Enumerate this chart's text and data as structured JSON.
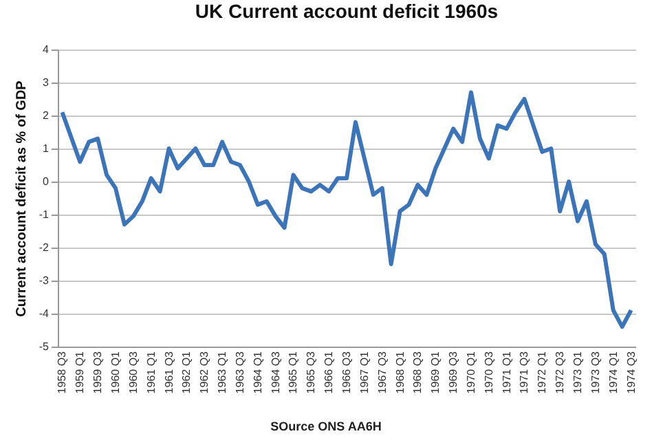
{
  "chart_data": {
    "type": "line",
    "title": "UK Current account deficit 1960s",
    "ylabel": "Current account deficit as % of GDP",
    "annotations": [
      "SOurce ONS AA6H"
    ],
    "categories": [
      "1958 Q3",
      null,
      "1959 Q1",
      null,
      "1959 Q3",
      null,
      "1960 Q1",
      null,
      "1960 Q3",
      null,
      "1961 Q1",
      null,
      "1961 Q3",
      null,
      "1962 Q1",
      null,
      "1962 Q3",
      null,
      "1963 Q1",
      null,
      "1963 Q3",
      null,
      "1964 Q1",
      null,
      "1964 Q3",
      null,
      "1965 Q1",
      null,
      "1965 Q3",
      null,
      "1966 Q1",
      null,
      "1966 Q3",
      null,
      "1967 Q1",
      null,
      "1967 Q3",
      null,
      "1968 Q1",
      null,
      "1968 Q3",
      null,
      "1969 Q1",
      null,
      "1969 Q3",
      null,
      "1970 Q1",
      null,
      "1970 Q3",
      null,
      "1971 Q1",
      null,
      "1971 Q3",
      null,
      "1972 Q1",
      null,
      "1972 Q3",
      null,
      "1973 Q1",
      null,
      "1973 Q3",
      null,
      "1974 Q1",
      null,
      "1974 Q3"
    ],
    "series": [
      {
        "color": "#3b74b8",
        "values": [
          2.1,
          1.35,
          0.6,
          1.2,
          1.3,
          0.2,
          -0.2,
          -1.3,
          -1.05,
          -0.6,
          0.1,
          -0.3,
          1.0,
          0.4,
          0.7,
          1.0,
          0.5,
          0.5,
          1.2,
          0.6,
          0.5,
          0.0,
          -0.7,
          -0.6,
          -1.05,
          -1.4,
          0.2,
          -0.2,
          -0.3,
          -0.1,
          -0.3,
          0.1,
          0.1,
          1.8,
          0.7,
          -0.4,
          -0.2,
          -2.5,
          -0.9,
          -0.7,
          -0.1,
          -0.4,
          0.4,
          1.0,
          1.6,
          1.2,
          2.7,
          1.3,
          0.7,
          1.7,
          1.6,
          2.1,
          2.5,
          1.7,
          0.9,
          1.0,
          -0.9,
          0.0,
          -1.2,
          -0.6,
          -1.9,
          -2.2,
          -3.9,
          -4.4,
          -3.9
        ]
      }
    ],
    "ylim": [
      -5,
      4
    ],
    "yticks": [
      -5,
      -4,
      -3,
      -2,
      -1,
      0,
      1,
      2,
      3,
      4
    ],
    "grid": "y"
  }
}
